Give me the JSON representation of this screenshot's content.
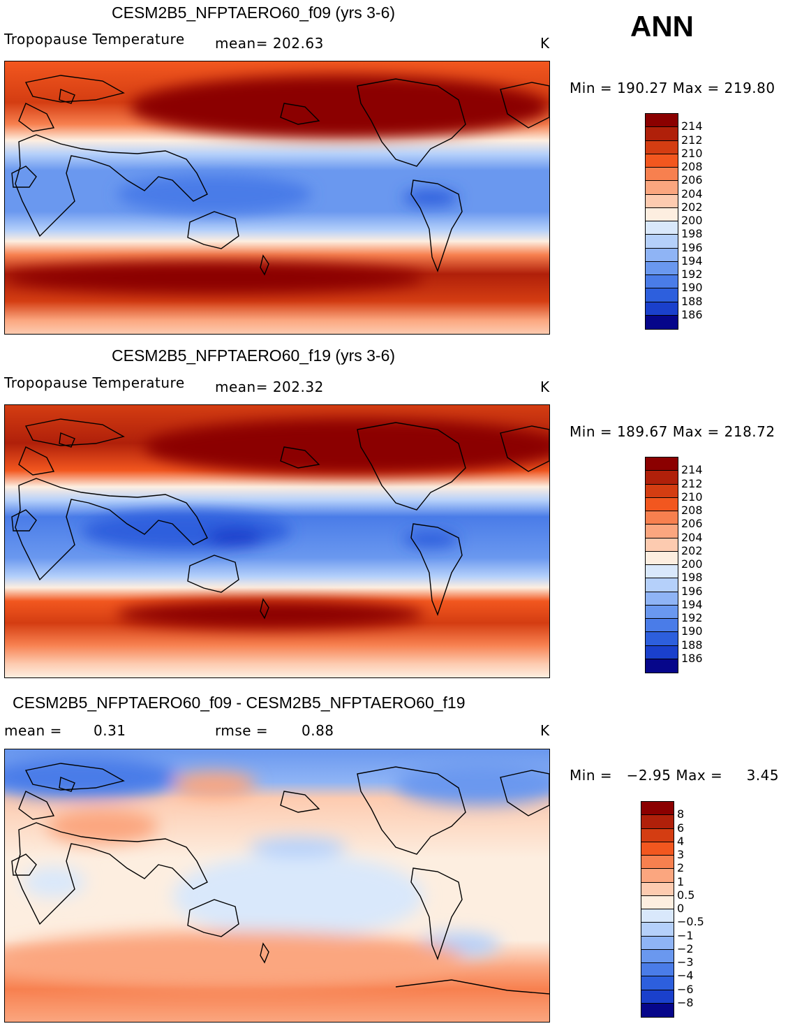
{
  "season": "ANN",
  "panels": [
    {
      "id": "p1",
      "title": "CESM2B5_NFPTAERO60_f09 (yrs 3-6)",
      "variable": "Tropopause Temperature",
      "stat": "mean= 202.63",
      "units": "K",
      "minmax": "Min = 190.27 Max = 219.80"
    },
    {
      "id": "p2",
      "title": "CESM2B5_NFPTAERO60_f19 (yrs 3-6)",
      "variable": "Tropopause Temperature",
      "stat": "mean= 202.32",
      "units": "K",
      "minmax": "Min = 189.67 Max = 218.72"
    },
    {
      "id": "p3",
      "title": "CESM2B5_NFPTAERO60_f09 - CESM2B5_NFPTAERO60_f19",
      "mean_label": "mean =",
      "mean_value": "0.31",
      "rmse_label": "rmse =",
      "rmse_value": "0.88",
      "units": "K",
      "minmax": "Min =   −2.95 Max =     3.45"
    }
  ],
  "colorbar_abs": {
    "labels": [
      "214",
      "212",
      "210",
      "208",
      "206",
      "204",
      "202",
      "200",
      "198",
      "196",
      "194",
      "192",
      "190",
      "188",
      "186"
    ],
    "colors": [
      "#8b0000",
      "#b0200a",
      "#d43d12",
      "#f2571f",
      "#f7804f",
      "#fba67f",
      "#fdcbb0",
      "#fdeee0",
      "#d9e8fb",
      "#b5d0fa",
      "#8fb4f5",
      "#6a98ef",
      "#4a7ce8",
      "#2d5fdd",
      "#1a40cc",
      "#06068a"
    ]
  },
  "colorbar_diff": {
    "labels": [
      "8",
      "6",
      "4",
      "3",
      "2",
      "1",
      "0.5",
      "0",
      "−0.5",
      "−1",
      "−2",
      "−3",
      "−4",
      "−6",
      "−8"
    ],
    "colors": [
      "#8b0000",
      "#b0200a",
      "#d43d12",
      "#f2571f",
      "#f7804f",
      "#fba67f",
      "#fdcbb0",
      "#fdeee0",
      "#d9e8fb",
      "#b5d0fa",
      "#8fb4f5",
      "#6a98ef",
      "#4a7ce8",
      "#2d5fdd",
      "#1a40cc",
      "#06068a"
    ]
  }
}
